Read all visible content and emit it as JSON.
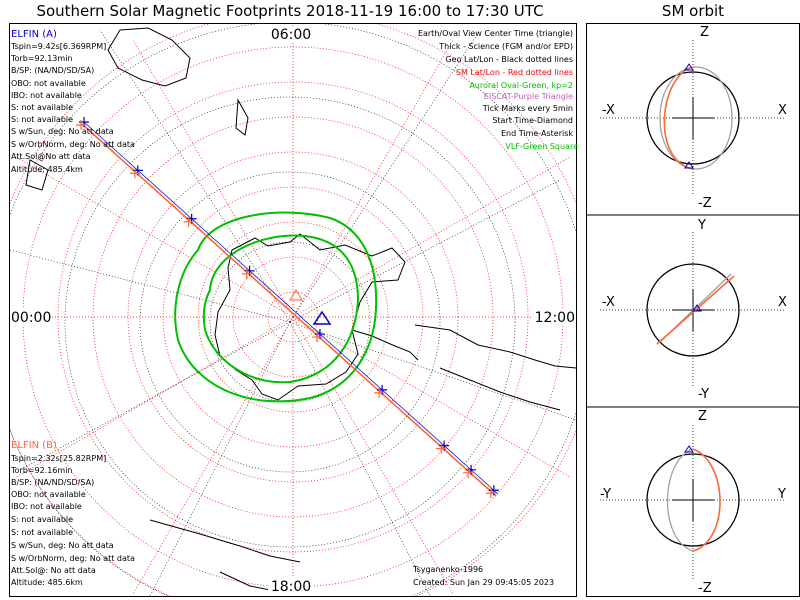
{
  "header": {
    "title": "Southern Solar Magnetic Footprints 2018-11-19 16:00 to 17:30 UTC",
    "orbit_title": "SM orbit"
  },
  "polar_plot": {
    "mlt_labels": {
      "top": "06:00",
      "left": "00:00",
      "right": "12:00",
      "bottom": "18:00"
    },
    "legend": [
      {
        "text": "Earth/Oval View Center Time (triangle)",
        "color": "#000000"
      },
      {
        "text": "Thick - Science (FGM and/or EPD)",
        "color": "#000000"
      },
      {
        "text": "Geo Lat/Lon - Black dotted lines",
        "color": "#000000"
      },
      {
        "text": "SM Lat/Lon - Red dotted lines",
        "color": "#ff0000"
      },
      {
        "text": "Auroral Oval-Green, kp=2",
        "color": "#00c000"
      },
      {
        "text": "EISCAT-Purple Triangle",
        "color": "#c060c0"
      },
      {
        "text": "Tick Marks every 5min",
        "color": "#000000"
      },
      {
        "text": "Start Time-Diamond",
        "color": "#000000"
      },
      {
        "text": "End Time-Asterisk",
        "color": "#000000"
      },
      {
        "text": "VLF-Green Square",
        "color": "#00c000"
      }
    ],
    "probe_a": {
      "name": "ELFIN (A)",
      "color": "#0000cc",
      "lines": [
        "Tspin=9.42s[6.369RPM]",
        "Torb=92.13min",
        "B/SP: (NA/ND/SD/SA)",
        "OBO: not available",
        "IBO: not available",
        "S: not available",
        "S: not available",
        "S w/Sun, deg: No att data",
        "S w/OrbNorm, deg: No att data",
        "Att.Sol@No att data",
        "Altitude: 485.4km"
      ]
    },
    "probe_b": {
      "name": "ELFIN (B)",
      "color": "#ff6633",
      "lines": [
        "Tspin=2.32s[25.82RPM]",
        "Torb=92.16min",
        "B/SP: (NA/ND/SD/SA)",
        "OBO: not available",
        "IBO: not available",
        "S: not available",
        "S: not available",
        "S w/Sun, deg: No att data",
        "S w/OrbNorm, deg: No att data",
        "Att.Sol@: No att data",
        "Altitude: 485.6km"
      ]
    },
    "footer": {
      "model": "Tsyganenko-1996",
      "created": "Created: Sun Jan 29 09:45:05 2023"
    }
  },
  "orbit_panels": [
    {
      "name": "xz",
      "top": "Z",
      "bottom": "-Z",
      "left": "-X",
      "right": "X"
    },
    {
      "name": "xy",
      "top": "Y",
      "bottom": "-Y",
      "left": "-X",
      "right": "X"
    },
    {
      "name": "yz",
      "top": "Z",
      "bottom": "-Z",
      "left": "-Y",
      "right": "Y"
    }
  ],
  "chart_data": {
    "type": "scatter",
    "title": "Southern Solar Magnetic Footprints 2018-11-19 16:00 to 17:30 UTC",
    "projection": "southern polar, SM coordinates, MLT clock",
    "mlt_labels": [
      "00:00",
      "06:00",
      "12:00",
      "18:00"
    ],
    "tick_interval_min": 5,
    "center_marker": "Earth/Oval view center time (triangle)",
    "series": [
      {
        "name": "ELFIN (A)",
        "color": "#0000cc",
        "marker": "+",
        "path": "footprint track from dawn-midnight sector across the pole toward noon-dusk sector"
      },
      {
        "name": "ELFIN (B)",
        "color": "#ff6633",
        "marker": "+",
        "path": "footprint track nearly coincident with ELFIN (A)"
      },
      {
        "name": "Auroral Oval, kp=2",
        "color": "#00c000",
        "marker": "line"
      }
    ]
  },
  "colors": {
    "probe_a": "#0000cc",
    "probe_b": "#ff6633",
    "oval": "#00c000",
    "sm_grid": "#ff0000",
    "geo_grid": "#000000",
    "coast": "#000000",
    "orbit_gray": "#a0a0a0"
  }
}
